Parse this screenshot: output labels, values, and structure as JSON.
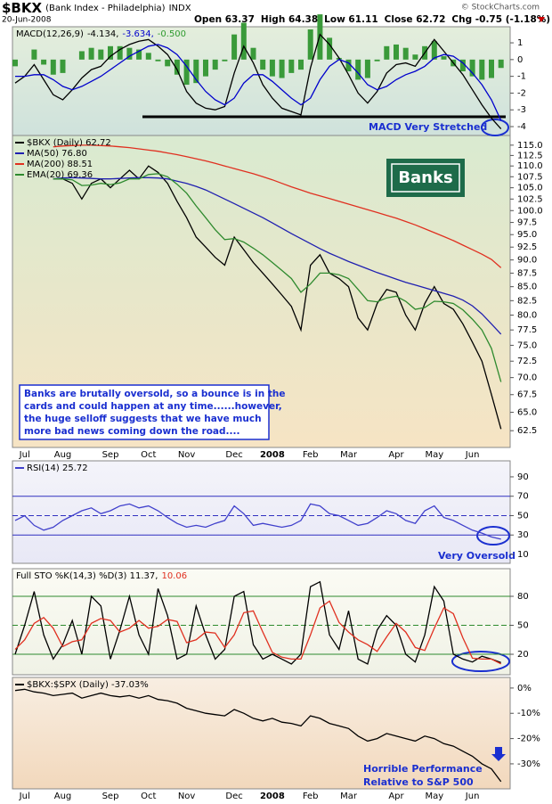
{
  "header": {
    "symbol": "$BKX",
    "name": "(Bank Index - Philadelphia)",
    "exchange": "INDX",
    "date": "20-Jun-2008",
    "quote": [
      "Open 63.37",
      "High 64.38",
      "Low 61.11",
      "Close 62.72",
      "Chg -0.75 (-1.18%)"
    ],
    "credit": "© StockCharts.com"
  },
  "chart_data": [
    {
      "type": "macd",
      "legend": [
        {
          "text": "MACD(12,26,9)",
          "color": "#000000"
        },
        {
          "text": "-4.134,",
          "color": "#000000"
        },
        {
          "text": "-3.634,",
          "color": "#0000cc"
        },
        {
          "text": "-0.500",
          "color": "#2e9a2e"
        }
      ],
      "ylim": [
        -4.53,
        1.96
      ],
      "yticks": [
        -4,
        -3,
        -2,
        -1,
        0,
        1
      ],
      "series": [
        {
          "color": "#000000",
          "values": [
            -1.4,
            -1.0,
            -0.3,
            -1.2,
            -2.1,
            -2.4,
            -1.8,
            -1.1,
            -0.6,
            -0.4,
            0.2,
            0.6,
            0.9,
            1.1,
            1.2,
            0.8,
            0.3,
            -0.6,
            -1.9,
            -2.6,
            -2.9,
            -3.0,
            -2.8,
            -0.8,
            0.8,
            -0.2,
            -1.5,
            -2.3,
            -2.9,
            -3.1,
            -3.3,
            -0.5,
            1.5,
            0.9,
            0.1,
            -0.9,
            -2.0,
            -2.6,
            -1.9,
            -0.8,
            -0.3,
            -0.2,
            -0.4,
            0.4,
            1.2,
            0.5,
            -0.2,
            -0.9,
            -1.8,
            -2.7,
            -3.5,
            -4.134
          ]
        },
        {
          "color": "#0000cc",
          "values": [
            -1.0,
            -1.0,
            -0.9,
            -0.9,
            -1.2,
            -1.6,
            -1.8,
            -1.6,
            -1.3,
            -1.0,
            -0.6,
            -0.2,
            0.2,
            0.5,
            0.8,
            0.9,
            0.7,
            0.3,
            -0.4,
            -1.2,
            -1.9,
            -2.4,
            -2.7,
            -2.3,
            -1.4,
            -0.9,
            -0.9,
            -1.3,
            -1.8,
            -2.3,
            -2.7,
            -2.3,
            -1.2,
            -0.4,
            0.0,
            -0.2,
            -0.8,
            -1.5,
            -1.8,
            -1.6,
            -1.2,
            -0.9,
            -0.7,
            -0.4,
            0.1,
            0.3,
            0.2,
            -0.2,
            -0.8,
            -1.5,
            -2.4,
            -3.634
          ]
        }
      ],
      "histogram": {
        "color": "#3a9a3a",
        "values": [
          -0.4,
          0.0,
          0.6,
          -0.3,
          -0.9,
          -0.8,
          0.0,
          0.5,
          0.7,
          0.6,
          0.8,
          0.8,
          0.7,
          0.6,
          0.4,
          -0.1,
          -0.4,
          -0.9,
          -1.5,
          -1.4,
          -1.0,
          -0.6,
          -0.1,
          1.5,
          2.2,
          0.7,
          -0.6,
          -1.0,
          -1.1,
          -0.8,
          -0.6,
          1.8,
          2.7,
          1.3,
          0.1,
          -0.7,
          -1.2,
          -1.1,
          -0.1,
          0.8,
          0.9,
          0.7,
          0.3,
          0.8,
          1.1,
          0.2,
          -0.4,
          -0.7,
          -1.0,
          -1.2,
          -1.1,
          -0.5
        ]
      },
      "note": "MACD Very Stretched"
    },
    {
      "type": "line",
      "log_scale": true,
      "categories": [
        null,
        "Jul",
        null,
        null,
        null,
        "Aug",
        null,
        null,
        null,
        null,
        "Sep",
        null,
        null,
        null,
        "Oct",
        null,
        null,
        null,
        "Nov",
        null,
        null,
        null,
        null,
        "Dec",
        null,
        null,
        null,
        "2008",
        null,
        null,
        null,
        "Feb",
        null,
        null,
        null,
        "Mar",
        null,
        null,
        null,
        null,
        "Apr",
        null,
        null,
        null,
        "May",
        null,
        null,
        null,
        "Jun",
        null,
        null,
        null
      ],
      "ylim": [
        60.3,
        117.4
      ],
      "yticks": [
        62.5,
        {
          "value": 65,
          "label": "65.0"
        },
        67.5,
        {
          "value": 70,
          "label": "70.0"
        },
        72.5,
        {
          "value": 75,
          "label": "75.0"
        },
        77.5,
        {
          "value": 80,
          "label": "80.0"
        },
        82.5,
        {
          "value": 85,
          "label": "85.0"
        },
        87.5,
        {
          "value": 90,
          "label": "90.0"
        },
        92.5,
        {
          "value": 95,
          "label": "95.0"
        },
        97.5,
        {
          "value": 100,
          "label": "100.0"
        },
        102.5,
        {
          "value": 105,
          "label": "105.0"
        },
        107.5,
        {
          "value": 110,
          "label": "110.0"
        },
        112.5,
        {
          "value": 115,
          "label": "115.0"
        }
      ],
      "series": [
        {
          "name": "$BKX (Daily) 62.72",
          "color": "#000000",
          "values": [
            null,
            null,
            null,
            null,
            107,
            107,
            106,
            102.5,
            106,
            107,
            105,
            107,
            109,
            107,
            110,
            108.5,
            106,
            102,
            98.5,
            94.5,
            92.5,
            90.5,
            89,
            94.5,
            92,
            89.5,
            87.5,
            85.5,
            83.5,
            81.5,
            77.5,
            89,
            91,
            87.5,
            86.5,
            85,
            79.5,
            77.5,
            82,
            84.5,
            84,
            80,
            77.5,
            82,
            85,
            82,
            81,
            78.5,
            75.5,
            72.5,
            67.5,
            62.72
          ]
        },
        {
          "name": "MA(50) 76.80",
          "color": "#2020b0",
          "values": [
            null,
            null,
            null,
            null,
            107,
            107.2,
            107.3,
            107.2,
            107.1,
            107,
            107,
            107.1,
            107.2,
            107.3,
            107.3,
            107.2,
            107,
            106.5,
            106,
            105.3,
            104.5,
            103.5,
            102.5,
            101.5,
            100.5,
            99.5,
            98.5,
            97.4,
            96.3,
            95.2,
            94.2,
            93.2,
            92.2,
            91.3,
            90.5,
            89.7,
            89,
            88.3,
            87.6,
            87,
            86.4,
            85.8,
            85.3,
            84.8,
            84.3,
            83.8,
            83.3,
            82.6,
            81.6,
            80.2,
            78.5,
            76.8
          ]
        },
        {
          "name": "MA(200) 88.51",
          "color": "#e03020",
          "values": [
            null,
            null,
            null,
            null,
            114.6,
            114.8,
            114.9,
            115,
            115,
            114.9,
            114.8,
            114.6,
            114.4,
            114.1,
            113.8,
            113.5,
            113.1,
            112.7,
            112.2,
            111.7,
            111.2,
            110.6,
            110,
            109.4,
            108.8,
            108.2,
            107.5,
            106.8,
            106,
            105.2,
            104.5,
            103.8,
            103.2,
            102.6,
            102,
            101.4,
            100.8,
            100.2,
            99.6,
            99,
            98.4,
            97.7,
            97,
            96.2,
            95.4,
            94.6,
            93.8,
            92.9,
            92,
            91.1,
            90.1,
            88.51
          ]
        },
        {
          "name": "EMA(20) 69.36",
          "color": "#2e8a2e",
          "values": [
            null,
            null,
            null,
            null,
            107,
            107,
            106.8,
            105.5,
            105.6,
            106,
            105.7,
            106.1,
            107,
            107,
            108,
            108.2,
            107.5,
            105.8,
            103.8,
            101,
            98.5,
            96,
            94,
            94.2,
            93.5,
            92.3,
            91,
            89.5,
            88,
            86.5,
            84,
            85.5,
            87.5,
            87.5,
            87.2,
            86.5,
            84.5,
            82.5,
            82.3,
            83,
            83.3,
            82.4,
            81,
            81.3,
            82.4,
            82.3,
            82,
            80.9,
            79.3,
            77.5,
            74.5,
            69.36
          ]
        }
      ],
      "badge": "Banks",
      "note": [
        "Banks are brutally oversold, so a bounce is in the",
        "cards and could happen at any time......however,",
        "the huge selloff suggests that we have much",
        "more bad news coming down the road...."
      ]
    },
    {
      "type": "line",
      "grid": true,
      "grid_color": "#3030c0",
      "ylim": [
        0.8,
        106.5
      ],
      "yticks": [
        10,
        30,
        50,
        70,
        90
      ],
      "series": [
        {
          "name": "RSI(14) 25.72",
          "color": "#4040cc",
          "values": [
            45,
            50,
            40,
            35,
            38,
            45,
            50,
            55,
            58,
            52,
            55,
            60,
            62,
            58,
            60,
            55,
            48,
            42,
            38,
            40,
            38,
            42,
            45,
            60,
            52,
            40,
            42,
            40,
            38,
            40,
            45,
            62,
            60,
            52,
            50,
            45,
            40,
            42,
            48,
            55,
            52,
            45,
            42,
            55,
            60,
            48,
            45,
            40,
            35,
            32,
            28,
            25.72
          ]
        }
      ],
      "note": "Very Oversold"
    },
    {
      "type": "line",
      "grid": true,
      "grid_color": "#2e8a2e",
      "legend": [
        {
          "text": "Full STO %K(14,3) %D(3) 11.37,",
          "color": "#000000"
        },
        {
          "text": "10.06",
          "color": "#e03020"
        }
      ],
      "ylim": [
        -1.2,
        108.6
      ],
      "yticks": [
        20,
        50,
        80
      ],
      "series": [
        {
          "color": "#000000",
          "values": [
            20,
            50,
            85,
            40,
            15,
            30,
            55,
            20,
            80,
            70,
            15,
            45,
            80,
            40,
            20,
            88,
            60,
            15,
            20,
            70,
            40,
            15,
            25,
            80,
            85,
            30,
            15,
            20,
            15,
            10,
            20,
            90,
            95,
            40,
            25,
            65,
            15,
            10,
            45,
            60,
            50,
            20,
            12,
            40,
            90,
            75,
            20,
            15,
            12,
            18,
            15,
            11.37
          ]
        },
        {
          "color": "#e03020",
          "values": [
            25,
            35,
            52,
            58,
            47,
            28,
            33,
            35,
            52,
            57,
            55,
            43,
            47,
            55,
            47,
            49,
            56,
            54,
            32,
            35,
            43,
            42,
            27,
            40,
            63,
            65,
            43,
            22,
            17,
            15,
            15,
            40,
            68,
            75,
            53,
            43,
            35,
            30,
            23,
            38,
            52,
            43,
            27,
            24,
            47,
            68,
            62,
            37,
            16,
            15,
            15,
            10.06
          ]
        }
      ]
    },
    {
      "type": "line",
      "categories": [
        null,
        "Jul",
        null,
        null,
        null,
        "Aug",
        null,
        null,
        null,
        null,
        "Sep",
        null,
        null,
        null,
        "Oct",
        null,
        null,
        null,
        "Nov",
        null,
        null,
        null,
        null,
        "Dec",
        null,
        null,
        null,
        "2008",
        null,
        null,
        null,
        "Feb",
        null,
        null,
        null,
        "Mar",
        null,
        null,
        null,
        null,
        "Apr",
        null,
        null,
        null,
        "May",
        null,
        null,
        null,
        "Jun",
        null,
        null,
        null
      ],
      "ylim": [
        -39.9,
        4.2
      ],
      "yticks": [
        {
          "value": -30,
          "label": "-30%"
        },
        {
          "value": -20,
          "label": "-20%"
        },
        {
          "value": -10,
          "label": "-10%"
        },
        {
          "value": 0,
          "label": "0%"
        }
      ],
      "series": [
        {
          "name": "$BKX:$SPX (Daily) -37.03%",
          "color": "#000000",
          "values": [
            -1,
            -0.5,
            -1.5,
            -2,
            -3,
            -2.5,
            -2,
            -4,
            -3,
            -2,
            -3,
            -3.5,
            -3,
            -4,
            -3,
            -4.5,
            -5,
            -6,
            -8,
            -9,
            -10,
            -10.5,
            -11,
            -8.5,
            -10,
            -12,
            -13,
            -12,
            -13.5,
            -14,
            -15,
            -11,
            -12,
            -14,
            -15,
            -16,
            -19,
            -21,
            -20,
            -18,
            -19,
            -20,
            -21,
            -19,
            -20,
            -22,
            -23,
            -25,
            -27,
            -30,
            -32,
            -37.03
          ]
        }
      ],
      "note": [
        "Horrible Performance",
        "Relative to S&P 500"
      ]
    }
  ]
}
